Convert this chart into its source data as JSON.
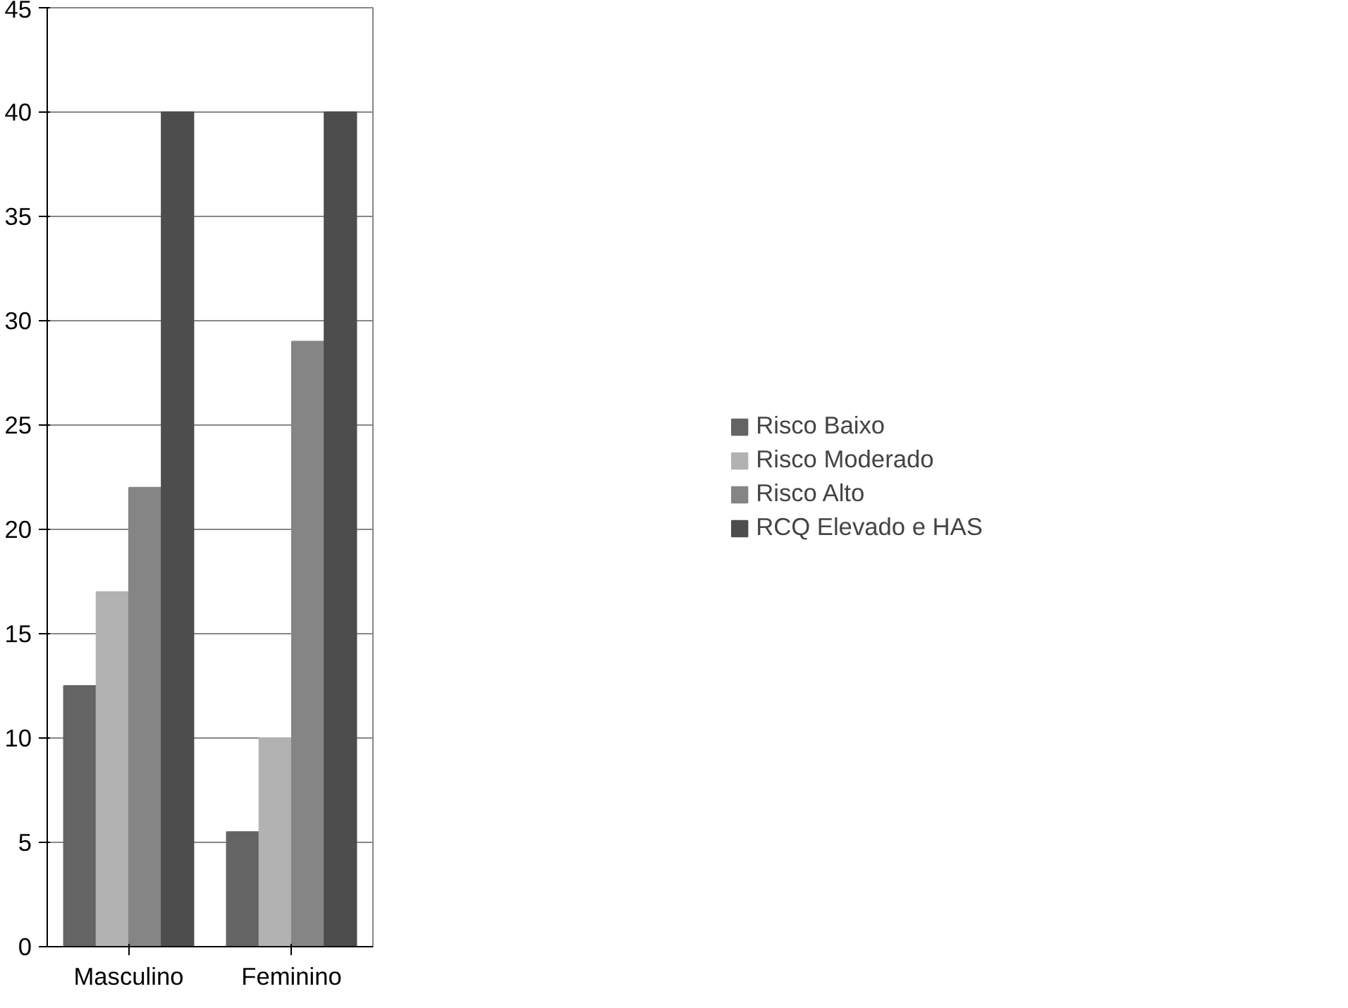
{
  "chart_data": {
    "type": "bar",
    "categories": [
      "Masculino",
      "Feminino"
    ],
    "series": [
      {
        "name": "Risco Baixo",
        "color": "#646464",
        "values": [
          12.5,
          5.5
        ]
      },
      {
        "name": "Risco Moderado",
        "color": "#b2b2b2",
        "values": [
          17,
          10
        ]
      },
      {
        "name": "Risco Alto",
        "color": "#858585",
        "values": [
          22,
          29
        ]
      },
      {
        "name": "RCQ Elevado e HAS",
        "color": "#4d4d4d",
        "values": [
          40,
          40
        ]
      }
    ],
    "ylim": [
      0,
      45
    ],
    "yticks": [
      0,
      5,
      10,
      15,
      20,
      25,
      30,
      35,
      40,
      45
    ],
    "grid": "y",
    "legend": "right"
  }
}
